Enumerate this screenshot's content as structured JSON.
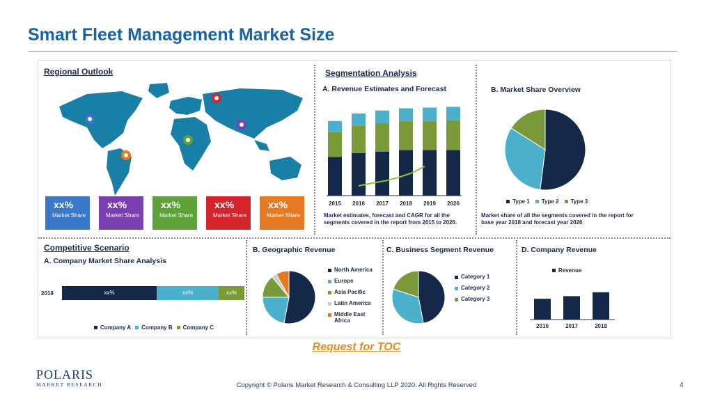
{
  "slide": {
    "title": "Smart Fleet Management Market Size",
    "toc_link": "Request for TOC",
    "copyright": "Copyright © Polaris Market Research & Consulting LLP 2020. All Rights Reserved",
    "page_number": "4",
    "logo_brand": "POLARIS",
    "logo_sub": "MARKET RESEARCH"
  },
  "regional": {
    "title": "Regional Outlook",
    "tiles": [
      {
        "pct": "xx%",
        "label": "Market Share",
        "color": "#3a78c9"
      },
      {
        "pct": "xx%",
        "label": "Market Share",
        "color": "#7a3fb0"
      },
      {
        "pct": "xx%",
        "label": "Market Share",
        "color": "#5fa23a"
      },
      {
        "pct": "xx%",
        "label": "Market Share",
        "color": "#d4242c"
      },
      {
        "pct": "xx%",
        "label": "Market Share",
        "color": "#e57a22"
      }
    ]
  },
  "segmentation": {
    "title": "Segmentation Analysis",
    "revenue_title": "A. Revenue Estimates and Forecast",
    "revenue_note": "Market estimates, forecast and CAGR for all the segments covered in the report from 2015 to 2026.",
    "share_title": "B. Market Share Overview",
    "share_note": "Market share of all the segments covered in the report for base year 2018 and forecast year 2026",
    "share_legend": [
      "Type 1",
      "Type 2",
      "Type 3"
    ]
  },
  "competitive": {
    "title": "Competitive Scenario",
    "sub_title": "A. Company Market Share Analysis",
    "row_label": "2018",
    "bar_labels": [
      "xx%",
      "xx%",
      "xx%"
    ],
    "legend": [
      "Company A",
      "Company B",
      "Company C"
    ]
  },
  "geographic": {
    "title": "B. Geographic Revenue",
    "legend": [
      "North America",
      "Europe",
      "Asia Pacific",
      "Latin America",
      "Middle East Africa"
    ]
  },
  "business": {
    "title": "C. Business Segment Revenue",
    "legend": [
      "Category 1",
      "Category 2",
      "Category 3"
    ]
  },
  "company_rev": {
    "title": "D. Company Revenue",
    "legend": "Revenue"
  },
  "colors": {
    "navy": "#16284a",
    "teal": "#4ab0cc",
    "olive": "#7a9a3a",
    "green_line": "#8cc43a",
    "light_gray": "#c9ccd1",
    "orange": "#e57a22"
  },
  "chart_data": [
    {
      "type": "bar",
      "title": "A. Revenue Estimates and Forecast",
      "categories": [
        "2015",
        "2016",
        "2017",
        "2018",
        "2019",
        "2026"
      ],
      "series": [
        {
          "values": [
            52,
            57,
            59,
            61,
            61,
            61
          ]
        },
        {
          "values": [
            33,
            37,
            38,
            39,
            39,
            40
          ]
        },
        {
          "values": [
            15,
            16,
            17,
            17,
            18,
            18
          ]
        }
      ],
      "trend": [
        5,
        10,
        14,
        20,
        28,
        40
      ],
      "ylim": [
        0,
        125
      ]
    },
    {
      "type": "pie",
      "title": "B. Market Share Overview",
      "labels": [
        "Type 1",
        "Type 2",
        "Type 3"
      ],
      "values": [
        52,
        32,
        16
      ]
    },
    {
      "type": "bar",
      "title": "A. Company Market Share Analysis",
      "categories": [
        "2018"
      ],
      "series": [
        {
          "name": "Company A",
          "values": [
            52
          ]
        },
        {
          "name": "Company B",
          "values": [
            34
          ]
        },
        {
          "name": "Company C",
          "values": [
            14
          ]
        }
      ],
      "orientation": "horizontal-stacked"
    },
    {
      "type": "pie",
      "title": "B. Geographic Revenue",
      "labels": [
        "North America",
        "Europe",
        "Asia Pacific",
        "Latin America",
        "Middle East Africa"
      ],
      "values": [
        53,
        22,
        14,
        3,
        8
      ]
    },
    {
      "type": "pie",
      "title": "C. Business Segment Revenue",
      "labels": [
        "Category 1",
        "Category 2",
        "Category 3"
      ],
      "values": [
        47,
        33,
        20
      ]
    },
    {
      "type": "bar",
      "title": "D. Company Revenue",
      "categories": [
        "2016",
        "2017",
        "2018"
      ],
      "series": [
        {
          "name": "Revenue",
          "values": [
            32,
            36,
            42
          ]
        }
      ],
      "ylim": [
        0,
        60
      ]
    }
  ]
}
